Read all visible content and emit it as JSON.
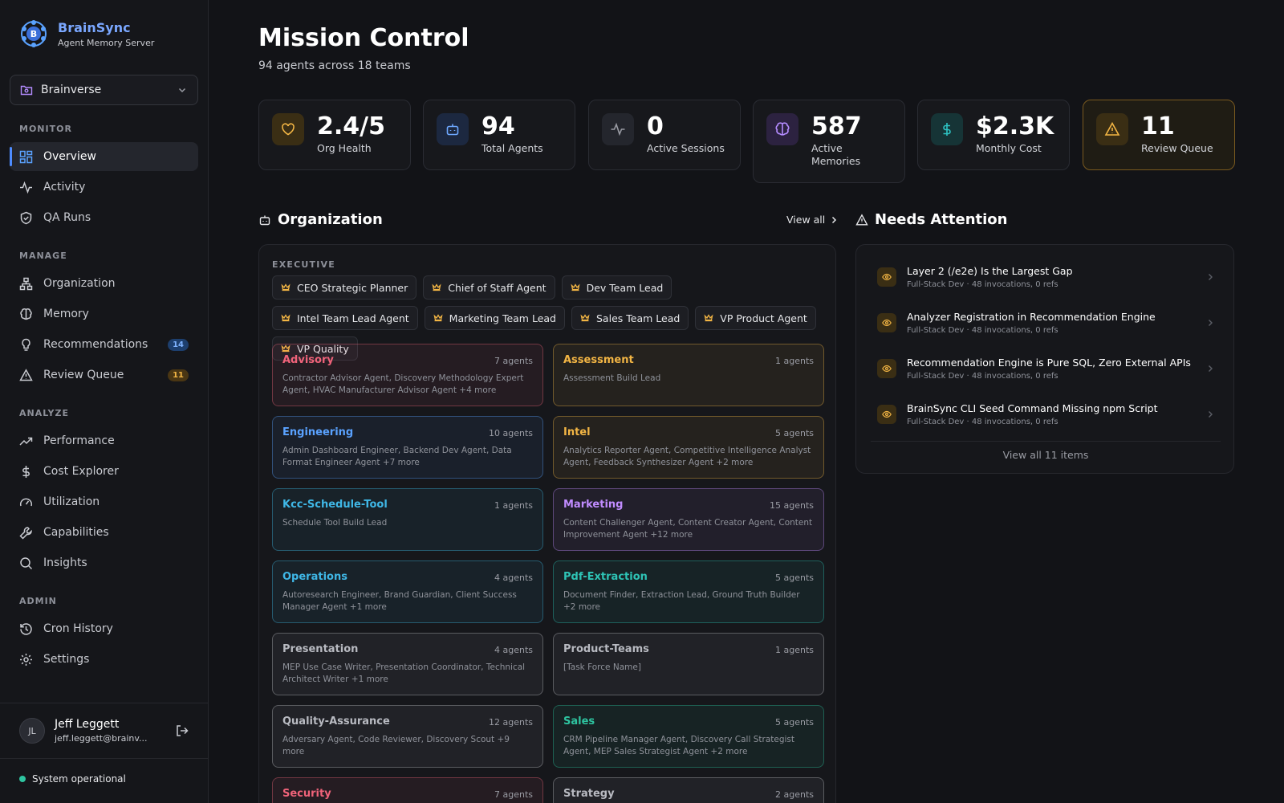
{
  "brand": {
    "name": "BrainSync",
    "subtitle": "Agent Memory Server",
    "logo_icon": "brain-b-logo"
  },
  "workspace": {
    "label": "Brainverse"
  },
  "nav": {
    "monitor_title": "MONITOR",
    "monitor": [
      {
        "label": "Overview",
        "icon": "grid-icon",
        "active": true
      },
      {
        "label": "Activity",
        "icon": "pulse-icon"
      },
      {
        "label": "QA Runs",
        "icon": "shield-check-icon"
      }
    ],
    "manage_title": "MANAGE",
    "manage": [
      {
        "label": "Organization",
        "icon": "org-chart-icon"
      },
      {
        "label": "Memory",
        "icon": "brain-icon"
      },
      {
        "label": "Recommendations",
        "icon": "lightbulb-icon",
        "badge": "14"
      },
      {
        "label": "Review Queue",
        "icon": "warning-icon",
        "badge": "11"
      }
    ],
    "analyze_title": "ANALYZE",
    "analyze": [
      {
        "label": "Performance",
        "icon": "trending-up-icon"
      },
      {
        "label": "Cost Explorer",
        "icon": "dollar-icon"
      },
      {
        "label": "Utilization",
        "icon": "gauge-icon"
      },
      {
        "label": "Capabilities",
        "icon": "wrench-icon"
      },
      {
        "label": "Insights",
        "icon": "search-icon"
      }
    ],
    "admin_title": "ADMIN",
    "admin": [
      {
        "label": "Cron History",
        "icon": "history-icon"
      },
      {
        "label": "Settings",
        "icon": "gear-icon"
      }
    ]
  },
  "user": {
    "initials": "JL",
    "name": "Jeff Leggett",
    "email": "jeff.leggett@brainv..."
  },
  "status": {
    "text": "System operational",
    "color": "#2ec4a0"
  },
  "page": {
    "title": "Mission Control",
    "subtitle": "94 agents across 18 teams"
  },
  "stats": [
    {
      "value": "2.4/5",
      "label": "Org Health",
      "icon": "heart-icon",
      "color": "#f2b544"
    },
    {
      "value": "94",
      "label": "Total Agents",
      "icon": "bot-icon",
      "color": "#6ea8ff"
    },
    {
      "value": "0",
      "label": "Active Sessions",
      "icon": "pulse-icon",
      "color": "#9a9ca4"
    },
    {
      "value": "587",
      "label": "Active Memories",
      "icon": "brain-icon",
      "color": "#b48cff"
    },
    {
      "value": "$2.3K",
      "label": "Monthly Cost",
      "icon": "dollar-icon",
      "color": "#2ec4c4"
    },
    {
      "value": "11",
      "label": "Review Queue",
      "icon": "warning-icon",
      "color": "#f2b544"
    }
  ],
  "organization": {
    "title": "Organization",
    "view_all": "View all",
    "executive_label": "EXECUTIVE",
    "executives": [
      "CEO Strategic Planner",
      "Chief of Staff Agent",
      "Dev Team Lead",
      "Intel Team Lead Agent",
      "Marketing Team Lead",
      "Sales Team Lead",
      "VP Product Agent",
      "VP Quality"
    ],
    "teams": [
      {
        "name": "Advisory",
        "count": "7 agents",
        "members": "Contractor Advisor Agent, Discovery Methodology Expert Agent, HVAC Manufacturer Advisor Agent +4 more",
        "color": "#f0637a"
      },
      {
        "name": "Assessment",
        "count": "1 agents",
        "members": "Assessment Build Lead",
        "color": "#f2b544"
      },
      {
        "name": "Engineering",
        "count": "10 agents",
        "members": "Admin Dashboard Engineer, Backend Dev Agent, Data Format Engineer Agent +7 more",
        "color": "#5aa2ff"
      },
      {
        "name": "Intel",
        "count": "5 agents",
        "members": "Analytics Reporter Agent, Competitive Intelligence Analyst Agent, Feedback Synthesizer Agent +2 more",
        "color": "#f2b544"
      },
      {
        "name": "Kcc-Schedule-Tool",
        "count": "1 agents",
        "members": "Schedule Tool Build Lead",
        "color": "#3fb7e6"
      },
      {
        "name": "Marketing",
        "count": "15 agents",
        "members": "Content Challenger Agent, Content Creator Agent, Content Improvement Agent +12 more",
        "color": "#c18cff"
      },
      {
        "name": "Operations",
        "count": "4 agents",
        "members": "Autoresearch Engineer, Brand Guardian, Client Success Manager Agent +1 more",
        "color": "#3fb7e6"
      },
      {
        "name": "Pdf-Extraction",
        "count": "5 agents",
        "members": "Document Finder, Extraction Lead, Ground Truth Builder +2 more",
        "color": "#2ec4b6"
      },
      {
        "name": "Presentation",
        "count": "4 agents",
        "members": "MEP Use Case Writer, Presentation Coordinator, Technical Architect Writer +1 more",
        "color": "#b8bac1"
      },
      {
        "name": "Product-Teams",
        "count": "1 agents",
        "members": "[Task Force Name]",
        "color": "#b8bac1"
      },
      {
        "name": "Quality-Assurance",
        "count": "12 agents",
        "members": "Adversary Agent, Code Reviewer, Discovery Scout +9 more",
        "color": "#b8bac1"
      },
      {
        "name": "Sales",
        "count": "5 agents",
        "members": "CRM Pipeline Manager Agent, Discovery Call Strategist Agent, MEP Sales Strategist Agent +2 more",
        "color": "#2ec4a0"
      },
      {
        "name": "Security",
        "count": "7 agents",
        "members": "",
        "color": "#f0637a"
      },
      {
        "name": "Strategy",
        "count": "2 agents",
        "members": "",
        "color": "#b8bac1"
      }
    ]
  },
  "attention": {
    "title": "Needs Attention",
    "items": [
      {
        "title": "Layer 2 (/e2e) Is the Largest Gap",
        "meta": "Full-Stack Dev · 48 invocations, 0 refs"
      },
      {
        "title": "Analyzer Registration in Recommendation Engine",
        "meta": "Full-Stack Dev · 48 invocations, 0 refs"
      },
      {
        "title": "Recommendation Engine is Pure SQL, Zero External APIs",
        "meta": "Full-Stack Dev · 48 invocations, 0 refs"
      },
      {
        "title": "BrainSync CLI Seed Command Missing npm Script",
        "meta": "Full-Stack Dev · 48 invocations, 0 refs"
      }
    ],
    "view_all": "View all 11 items"
  }
}
